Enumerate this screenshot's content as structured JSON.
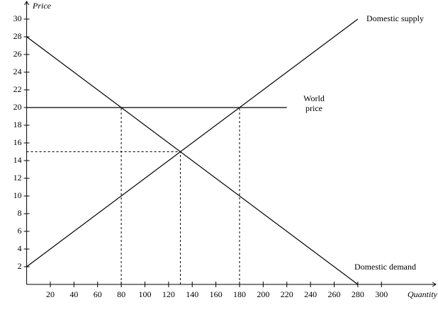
{
  "chart_data": {
    "type": "line",
    "x_label": "Quantity",
    "y_label": "Price",
    "xlim": [
      0,
      346
    ],
    "ylim": [
      0,
      32
    ],
    "xticks": [
      20,
      40,
      60,
      80,
      100,
      120,
      140,
      160,
      180,
      200,
      220,
      240,
      260,
      280,
      300
    ],
    "yticks": [
      2,
      4,
      6,
      8,
      10,
      12,
      14,
      16,
      18,
      20,
      22,
      24,
      26,
      28,
      30
    ],
    "color": "#000000",
    "series": [
      {
        "label": "Domestic supply",
        "x": [
          0,
          280
        ],
        "values": [
          2,
          30
        ]
      },
      {
        "label": "Domestic demand",
        "x": [
          0,
          280
        ],
        "values": [
          28,
          0
        ]
      },
      {
        "label": [
          "World",
          "price"
        ],
        "x": [
          0,
          220
        ],
        "values": [
          20,
          20
        ]
      }
    ],
    "guides": [
      {
        "x": [
          80,
          80
        ],
        "values": [
          0,
          20
        ]
      },
      {
        "x": [
          180,
          180
        ],
        "values": [
          0,
          20
        ]
      },
      {
        "x": [
          130,
          130
        ],
        "values": [
          0,
          15
        ]
      },
      {
        "x": [
          0,
          130
        ],
        "values": [
          15,
          15
        ]
      }
    ]
  }
}
